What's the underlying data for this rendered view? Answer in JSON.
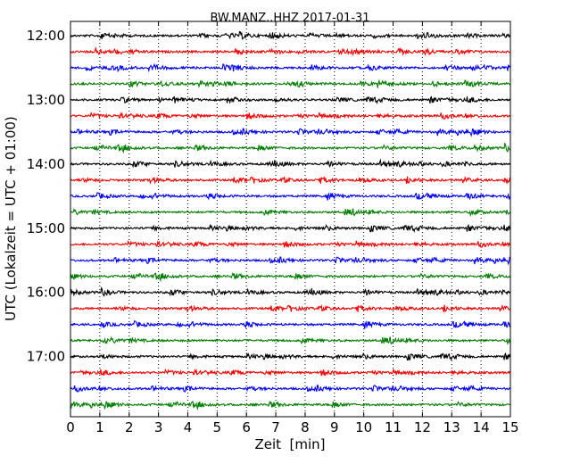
{
  "chart_data": {
    "type": "line",
    "title": "BW.MANZ..HHZ 2017-01-31",
    "xlabel": "Zeit  [min]",
    "ylabel": "UTC (Lokalzeit = UTC + 01:00)",
    "xlim": [
      0,
      15
    ],
    "x_ticks": [
      "0",
      "1",
      "2",
      "3",
      "4",
      "5",
      "6",
      "7",
      "8",
      "9",
      "10",
      "11",
      "12",
      "13",
      "14",
      "15"
    ],
    "y_ticks": [
      "12:00",
      "13:00",
      "14:00",
      "15:00",
      "16:00",
      "17:00"
    ],
    "x_grid": "dotted vertical lines at each minute",
    "trace_start_times": [
      "12:00",
      "12:15",
      "12:30",
      "12:45",
      "13:00",
      "13:15",
      "13:30",
      "13:45",
      "14:00",
      "14:15",
      "14:30",
      "14:45",
      "15:00",
      "15:15",
      "15:30",
      "15:45",
      "16:00",
      "16:15",
      "16:30",
      "16:45",
      "17:00",
      "17:15",
      "17:30",
      "17:45"
    ],
    "trace_duration_min": 15,
    "color_cycle": [
      "#000000",
      "#ff0000",
      "#0000ff",
      "#007f00"
    ]
  }
}
